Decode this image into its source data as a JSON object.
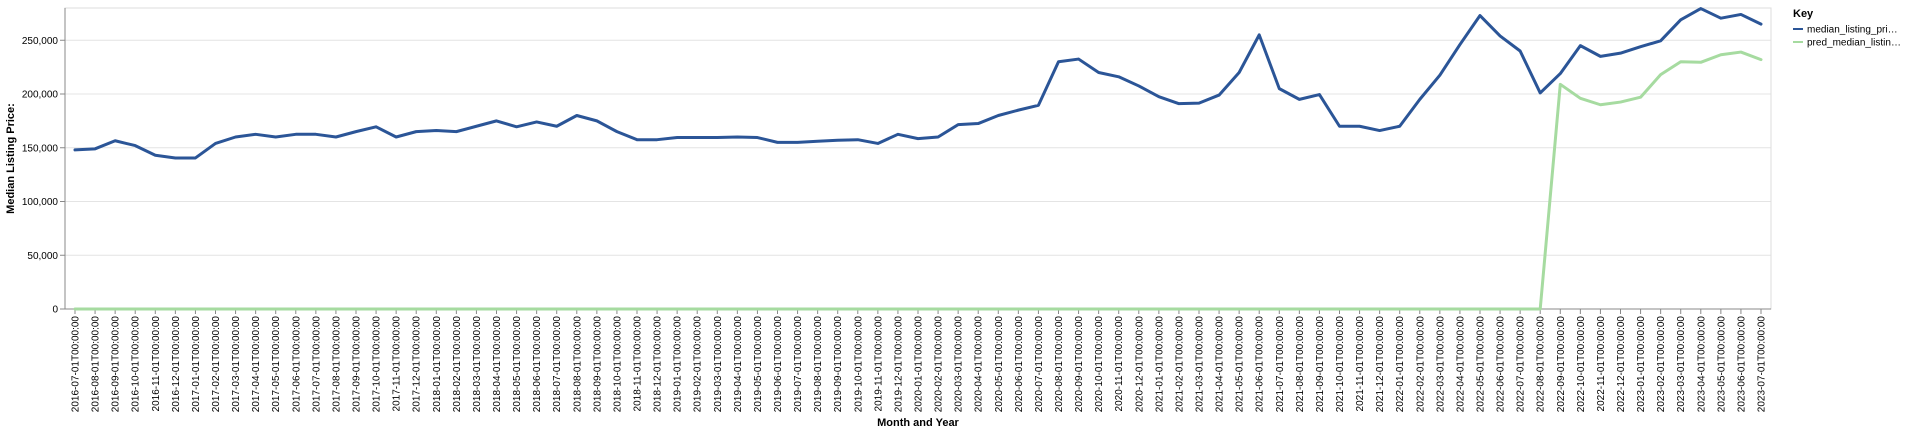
{
  "chart_data": {
    "type": "line",
    "xlabel": "Month and Year",
    "ylabel": "Median Listing Price:",
    "ylim": [
      0,
      280000
    ],
    "yticks": [
      0,
      50000,
      100000,
      150000,
      200000,
      250000
    ],
    "ytick_labels": [
      "0",
      "50,000",
      "100,000",
      "150,000",
      "200,000",
      "250,000"
    ],
    "grid": true,
    "legend": {
      "title": "Key",
      "placement": "top-right",
      "labels": [
        "median_listing_pri…",
        "pred_median_listin…"
      ]
    },
    "x": [
      "2016-07-01T00:00:00",
      "2016-08-01T00:00:00",
      "2016-09-01T00:00:00",
      "2016-10-01T00:00:00",
      "2016-11-01T00:00:00",
      "2016-12-01T00:00:00",
      "2017-01-01T00:00:00",
      "2017-02-01T00:00:00",
      "2017-03-01T00:00:00",
      "2017-04-01T00:00:00",
      "2017-05-01T00:00:00",
      "2017-06-01T00:00:00",
      "2017-07-01T00:00:00",
      "2017-08-01T00:00:00",
      "2017-09-01T00:00:00",
      "2017-10-01T00:00:00",
      "2017-11-01T00:00:00",
      "2017-12-01T00:00:00",
      "2018-01-01T00:00:00",
      "2018-02-01T00:00:00",
      "2018-03-01T00:00:00",
      "2018-04-01T00:00:00",
      "2018-05-01T00:00:00",
      "2018-06-01T00:00:00",
      "2018-07-01T00:00:00",
      "2018-08-01T00:00:00",
      "2018-09-01T00:00:00",
      "2018-10-01T00:00:00",
      "2018-11-01T00:00:00",
      "2018-12-01T00:00:00",
      "2019-01-01T00:00:00",
      "2019-02-01T00:00:00",
      "2019-03-01T00:00:00",
      "2019-04-01T00:00:00",
      "2019-05-01T00:00:00",
      "2019-06-01T00:00:00",
      "2019-07-01T00:00:00",
      "2019-08-01T00:00:00",
      "2019-09-01T00:00:00",
      "2019-10-01T00:00:00",
      "2019-11-01T00:00:00",
      "2019-12-01T00:00:00",
      "2020-01-01T00:00:00",
      "2020-02-01T00:00:00",
      "2020-03-01T00:00:00",
      "2020-04-01T00:00:00",
      "2020-05-01T00:00:00",
      "2020-06-01T00:00:00",
      "2020-07-01T00:00:00",
      "2020-08-01T00:00:00",
      "2020-09-01T00:00:00",
      "2020-10-01T00:00:00",
      "2020-11-01T00:00:00",
      "2020-12-01T00:00:00",
      "2021-01-01T00:00:00",
      "2021-02-01T00:00:00",
      "2021-03-01T00:00:00",
      "2021-04-01T00:00:00",
      "2021-05-01T00:00:00",
      "2021-06-01T00:00:00",
      "2021-07-01T00:00:00",
      "2021-08-01T00:00:00",
      "2021-09-01T00:00:00",
      "2021-10-01T00:00:00",
      "2021-11-01T00:00:00",
      "2021-12-01T00:00:00",
      "2022-01-01T00:00:00",
      "2022-02-01T00:00:00",
      "2022-03-01T00:00:00",
      "2022-04-01T00:00:00",
      "2022-05-01T00:00:00",
      "2022-06-01T00:00:00",
      "2022-07-01T00:00:00",
      "2022-08-01T00:00:00",
      "2022-09-01T00:00:00",
      "2022-10-01T00:00:00",
      "2022-11-01T00:00:00",
      "2022-12-01T00:00:00",
      "2023-01-01T00:00:00",
      "2023-02-01T00:00:00",
      "2023-03-01T00:00:00",
      "2023-04-01T00:00:00",
      "2023-05-01T00:00:00",
      "2023-06-01T00:00:00",
      "2023-07-01T00:00:00"
    ],
    "series": [
      {
        "name": "median_listing_pri…",
        "color": "#2b5597",
        "values": [
          148000,
          149000,
          156500,
          152000,
          143000,
          140500,
          140500,
          154000,
          160000,
          162500,
          160000,
          162500,
          162500,
          160000,
          165000,
          169500,
          160000,
          165000,
          166000,
          165000,
          170000,
          175000,
          169500,
          174000,
          170000,
          180000,
          175000,
          165000,
          157500,
          157500,
          159500,
          159500,
          159500,
          160000,
          159500,
          155000,
          155000,
          156000,
          157000,
          157500,
          154000,
          162500,
          158500,
          160000,
          171500,
          172500,
          180000,
          185000,
          189500,
          230000,
          232500,
          220000,
          216000,
          207500,
          197500,
          191000,
          191500,
          199000,
          220000,
          255000,
          205000,
          195000,
          199500,
          170000,
          170000,
          166000,
          170000,
          195000,
          217500,
          246000,
          273000,
          254000,
          240000,
          201000,
          219000,
          245000,
          235000,
          238000,
          244000,
          249500,
          269000,
          279500,
          270500,
          274000,
          265000
        ]
      },
      {
        "name": "pred_median_listin…",
        "color": "#a6dba0",
        "values": [
          0,
          0,
          0,
          0,
          0,
          0,
          0,
          0,
          0,
          0,
          0,
          0,
          0,
          0,
          0,
          0,
          0,
          0,
          0,
          0,
          0,
          0,
          0,
          0,
          0,
          0,
          0,
          0,
          0,
          0,
          0,
          0,
          0,
          0,
          0,
          0,
          0,
          0,
          0,
          0,
          0,
          0,
          0,
          0,
          0,
          0,
          0,
          0,
          0,
          0,
          0,
          0,
          0,
          0,
          0,
          0,
          0,
          0,
          0,
          0,
          0,
          0,
          0,
          0,
          0,
          0,
          0,
          0,
          0,
          0,
          0,
          0,
          0,
          0,
          209000,
          196000,
          190000,
          192500,
          197000,
          218000,
          230000,
          229500,
          236500,
          239000,
          232000
        ]
      }
    ]
  }
}
